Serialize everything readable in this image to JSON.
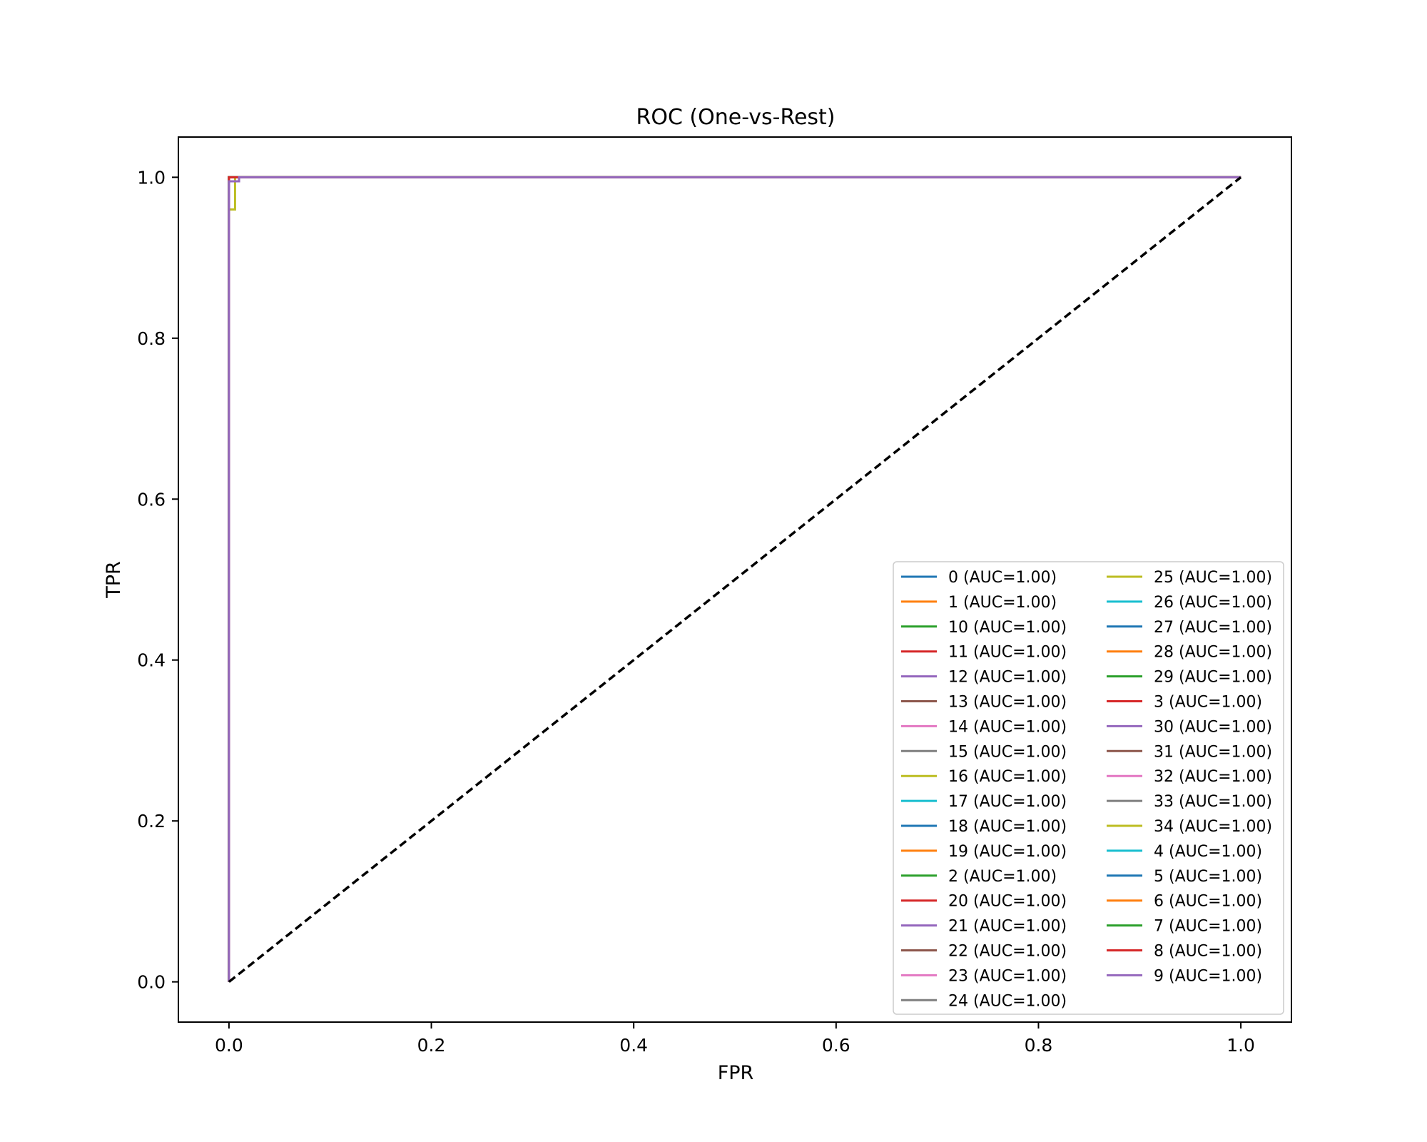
{
  "chart_data": {
    "type": "line",
    "title": "ROC (One-vs-Rest)",
    "xlabel": "FPR",
    "ylabel": "TPR",
    "xlim": [
      -0.05,
      1.05
    ],
    "ylim": [
      -0.05,
      1.05
    ],
    "xticks": [
      "0.0",
      "0.2",
      "0.4",
      "0.6",
      "0.8",
      "1.0"
    ],
    "yticks": [
      "0.0",
      "0.2",
      "0.4",
      "0.6",
      "0.8",
      "1.0"
    ],
    "grid": false,
    "legend_position": "lower right",
    "legend_columns": 2,
    "baseline": {
      "x": [
        0,
        1
      ],
      "y": [
        0,
        1
      ],
      "color": "#000000",
      "style": "dashed"
    },
    "series": [
      {
        "name": "0 (AUC=1.00)",
        "color": "#1f77b4",
        "x": [
          0,
          0,
          1
        ],
        "y": [
          0,
          1,
          1
        ]
      },
      {
        "name": "1 (AUC=1.00)",
        "color": "#ff7f0e",
        "x": [
          0,
          0,
          1
        ],
        "y": [
          0,
          1,
          1
        ]
      },
      {
        "name": "10 (AUC=1.00)",
        "color": "#2ca02c",
        "x": [
          0,
          0,
          1
        ],
        "y": [
          0,
          1,
          1
        ]
      },
      {
        "name": "11 (AUC=1.00)",
        "color": "#d62728",
        "x": [
          0,
          0,
          1
        ],
        "y": [
          0,
          1,
          1
        ]
      },
      {
        "name": "12 (AUC=1.00)",
        "color": "#9467bd",
        "x": [
          0,
          0,
          1
        ],
        "y": [
          0,
          1,
          1
        ]
      },
      {
        "name": "13 (AUC=1.00)",
        "color": "#8c564b",
        "x": [
          0,
          0,
          1
        ],
        "y": [
          0,
          1,
          1
        ]
      },
      {
        "name": "14 (AUC=1.00)",
        "color": "#e377c2",
        "x": [
          0,
          0,
          1
        ],
        "y": [
          0,
          1,
          1
        ]
      },
      {
        "name": "15 (AUC=1.00)",
        "color": "#7f7f7f",
        "x": [
          0,
          0,
          1
        ],
        "y": [
          0,
          1,
          1
        ]
      },
      {
        "name": "16 (AUC=1.00)",
        "color": "#bcbd22",
        "x": [
          0,
          0,
          1
        ],
        "y": [
          0,
          1,
          1
        ]
      },
      {
        "name": "17 (AUC=1.00)",
        "color": "#17becf",
        "x": [
          0,
          0,
          1
        ],
        "y": [
          0,
          1,
          1
        ]
      },
      {
        "name": "18 (AUC=1.00)",
        "color": "#1f77b4",
        "x": [
          0,
          0,
          1
        ],
        "y": [
          0,
          1,
          1
        ]
      },
      {
        "name": "19 (AUC=1.00)",
        "color": "#ff7f0e",
        "x": [
          0,
          0,
          1
        ],
        "y": [
          0,
          1,
          1
        ]
      },
      {
        "name": "2 (AUC=1.00)",
        "color": "#2ca02c",
        "x": [
          0,
          0,
          1
        ],
        "y": [
          0,
          1,
          1
        ]
      },
      {
        "name": "20 (AUC=1.00)",
        "color": "#d62728",
        "x": [
          0,
          0,
          1
        ],
        "y": [
          0,
          1,
          1
        ]
      },
      {
        "name": "21 (AUC=1.00)",
        "color": "#9467bd",
        "x": [
          0,
          0,
          1
        ],
        "y": [
          0,
          1,
          1
        ]
      },
      {
        "name": "22 (AUC=1.00)",
        "color": "#8c564b",
        "x": [
          0,
          0,
          1
        ],
        "y": [
          0,
          1,
          1
        ]
      },
      {
        "name": "23 (AUC=1.00)",
        "color": "#e377c2",
        "x": [
          0,
          0,
          1
        ],
        "y": [
          0,
          1,
          1
        ]
      },
      {
        "name": "24 (AUC=1.00)",
        "color": "#7f7f7f",
        "x": [
          0,
          0,
          1
        ],
        "y": [
          0,
          1,
          1
        ]
      },
      {
        "name": "25 (AUC=1.00)",
        "color": "#bcbd22",
        "x": [
          0,
          0,
          0.006,
          0.006,
          1
        ],
        "y": [
          0,
          0.96,
          0.96,
          1,
          1
        ]
      },
      {
        "name": "26 (AUC=1.00)",
        "color": "#17becf",
        "x": [
          0,
          0,
          1
        ],
        "y": [
          0,
          1,
          1
        ]
      },
      {
        "name": "27 (AUC=1.00)",
        "color": "#1f77b4",
        "x": [
          0,
          0,
          1
        ],
        "y": [
          0,
          1,
          1
        ]
      },
      {
        "name": "28 (AUC=1.00)",
        "color": "#ff7f0e",
        "x": [
          0,
          0,
          1
        ],
        "y": [
          0,
          1,
          1
        ]
      },
      {
        "name": "29 (AUC=1.00)",
        "color": "#2ca02c",
        "x": [
          0,
          0,
          1
        ],
        "y": [
          0,
          1,
          1
        ]
      },
      {
        "name": "3 (AUC=1.00)",
        "color": "#d62728",
        "x": [
          0,
          0,
          1
        ],
        "y": [
          0,
          1,
          1
        ]
      },
      {
        "name": "30 (AUC=1.00)",
        "color": "#9467bd",
        "x": [
          0,
          0,
          1
        ],
        "y": [
          0,
          1,
          1
        ]
      },
      {
        "name": "31 (AUC=1.00)",
        "color": "#8c564b",
        "x": [
          0,
          0,
          1
        ],
        "y": [
          0,
          1,
          1
        ]
      },
      {
        "name": "32 (AUC=1.00)",
        "color": "#e377c2",
        "x": [
          0,
          0,
          1
        ],
        "y": [
          0,
          1,
          1
        ]
      },
      {
        "name": "33 (AUC=1.00)",
        "color": "#7f7f7f",
        "x": [
          0,
          0,
          1
        ],
        "y": [
          0,
          1,
          1
        ]
      },
      {
        "name": "34 (AUC=1.00)",
        "color": "#bcbd22",
        "x": [
          0,
          0,
          1
        ],
        "y": [
          0,
          1,
          1
        ]
      },
      {
        "name": "4 (AUC=1.00)",
        "color": "#17becf",
        "x": [
          0,
          0,
          1
        ],
        "y": [
          0,
          1,
          1
        ]
      },
      {
        "name": "5 (AUC=1.00)",
        "color": "#1f77b4",
        "x": [
          0,
          0,
          1
        ],
        "y": [
          0,
          1,
          1
        ]
      },
      {
        "name": "6 (AUC=1.00)",
        "color": "#ff7f0e",
        "x": [
          0,
          0,
          1
        ],
        "y": [
          0,
          1,
          1
        ]
      },
      {
        "name": "7 (AUC=1.00)",
        "color": "#2ca02c",
        "x": [
          0,
          0,
          1
        ],
        "y": [
          0,
          1,
          1
        ]
      },
      {
        "name": "8 (AUC=1.00)",
        "color": "#d62728",
        "x": [
          0,
          0,
          1
        ],
        "y": [
          0,
          1,
          1
        ]
      },
      {
        "name": "9 (AUC=1.00)",
        "color": "#9467bd",
        "x": [
          0,
          0,
          0.01,
          0.01,
          1
        ],
        "y": [
          0,
          0.995,
          0.995,
          1,
          1
        ]
      }
    ]
  }
}
